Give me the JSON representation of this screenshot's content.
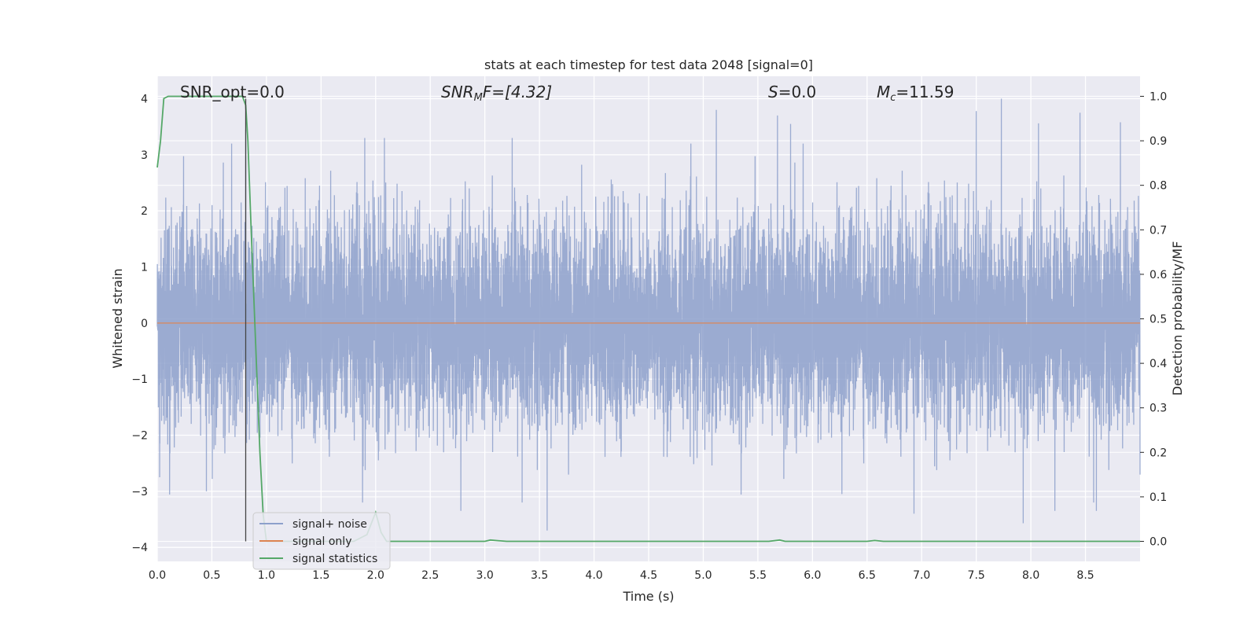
{
  "chart_data": {
    "type": "line",
    "title": "stats at each timestep for test data 2048 [signal=0]",
    "xlabel": "Time (s)",
    "ylabel_left": "Whitened strain",
    "ylabel_right": "Detection probability/MF",
    "xlim": [
      0.0,
      9.0
    ],
    "ylim_left": [
      -4.25,
      4.4
    ],
    "ylim_right": [
      -0.045,
      1.045
    ],
    "x_ticks": [
      "0.0",
      "0.5",
      "1.0",
      "1.5",
      "2.0",
      "2.5",
      "3.0",
      "3.5",
      "4.0",
      "4.5",
      "5.0",
      "5.5",
      "6.0",
      "6.5",
      "7.0",
      "7.5",
      "8.0",
      "8.5"
    ],
    "y_ticks_left": [
      "4",
      "3",
      "2",
      "1",
      "0",
      "−1",
      "−2",
      "−3",
      "−4"
    ],
    "y_ticks_right": [
      "1.0",
      "0.9",
      "0.8",
      "0.7",
      "0.6",
      "0.5",
      "0.4",
      "0.3",
      "0.2",
      "0.1",
      "0.0"
    ],
    "grid": true,
    "background": "#eaeaf2",
    "annotations": {
      "snr_opt": "SNR_opt=0.0",
      "snr_mf_main": "SNR",
      "snr_mf_sub": "M",
      "snr_mf_rest": "F=[4.32]",
      "s_main": "S",
      "s_rest": "=0.0",
      "mc_main": "M",
      "mc_sub": "c",
      "mc_rest": "=11.59"
    },
    "vertical_marker_x": 0.81,
    "legend": {
      "placement": "lower-left",
      "entries": [
        "signal+ noise",
        "signal only",
        "signal statistics"
      ]
    },
    "series": [
      {
        "name": "signal+ noise",
        "color": "#8da0cb",
        "axis": "left",
        "description_noise_std": 0.9,
        "sampled_peaks": [
          [
            0.45,
            3.58
          ],
          [
            0.81,
            3.45
          ],
          [
            1.9,
            3.3
          ],
          [
            2.08,
            3.3
          ],
          [
            3.25,
            3.3
          ],
          [
            5.12,
            3.8
          ],
          [
            5.68,
            3.7
          ],
          [
            5.8,
            3.55
          ],
          [
            7.5,
            3.78
          ],
          [
            7.73,
            4.0
          ],
          [
            8.07,
            3.56
          ],
          [
            8.45,
            3.75
          ],
          [
            8.82,
            3.58
          ],
          [
            2.78,
            -3.35
          ],
          [
            3.57,
            -3.7
          ],
          [
            7.93,
            -3.57
          ],
          [
            8.22,
            -3.35
          ],
          [
            8.6,
            -3.35
          ],
          [
            6.93,
            -3.4
          ],
          [
            6.27,
            -3.05
          ],
          [
            0.45,
            -3.0
          ],
          [
            1.88,
            -3.2
          ]
        ],
        "typical_envelope": [
          -2.3,
          2.3
        ]
      },
      {
        "name": "signal only",
        "color": "#dd8452",
        "axis": "left",
        "x": [
          0.0,
          9.0
        ],
        "y": [
          0.0,
          0.0
        ]
      },
      {
        "name": "signal statistics",
        "color": "#55a868",
        "axis": "right",
        "x": [
          0.0,
          0.03,
          0.06,
          0.1,
          0.15,
          0.3,
          0.5,
          0.7,
          0.78,
          0.81,
          0.83,
          0.86,
          0.9,
          0.94,
          0.97,
          1.0,
          1.05,
          1.3,
          1.8,
          1.92,
          2.0,
          2.05,
          2.1,
          2.3,
          2.8,
          3.0,
          3.05,
          3.2,
          3.5,
          4.0,
          5.0,
          5.6,
          5.7,
          5.75,
          6.0,
          6.5,
          6.57,
          6.65,
          7.0,
          8.0,
          9.0
        ],
        "y": [
          0.84,
          0.9,
          0.995,
          1.0,
          1.0,
          1.0,
          1.0,
          1.0,
          1.0,
          0.98,
          0.9,
          0.7,
          0.45,
          0.2,
          0.06,
          0.0,
          0.0,
          0.0,
          0.0,
          0.015,
          0.065,
          0.02,
          0.0,
          0.0,
          0.0,
          0.0,
          0.003,
          0.0,
          0.0,
          0.0,
          0.0,
          0.0,
          0.003,
          0.0,
          0.0,
          0.0,
          0.002,
          0.0,
          0.0,
          0.0,
          0.0
        ]
      }
    ]
  }
}
